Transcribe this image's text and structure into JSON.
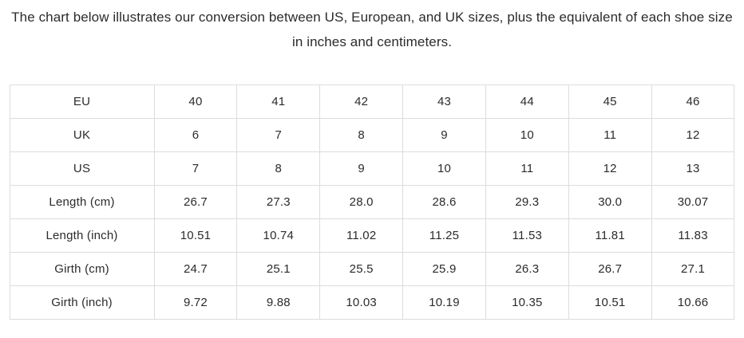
{
  "page": {
    "background": "#ffffff",
    "text_color": "#2b2b2b",
    "border_color": "#dcdcdc"
  },
  "intro": {
    "text": "The chart below illustrates our conversion between US, European, and UK sizes, plus the equivalent of each shoe size in inches and centimeters."
  },
  "size_table": {
    "rows": [
      {
        "label": "EU",
        "values": [
          "40",
          "41",
          "42",
          "43",
          "44",
          "45",
          "46"
        ]
      },
      {
        "label": "UK",
        "values": [
          "6",
          "7",
          "8",
          "9",
          "10",
          "11",
          "12"
        ]
      },
      {
        "label": "US",
        "values": [
          "7",
          "8",
          "9",
          "10",
          "11",
          "12",
          "13"
        ]
      },
      {
        "label": "Length (cm)",
        "values": [
          "26.7",
          "27.3",
          "28.0",
          "28.6",
          "29.3",
          "30.0",
          "30.07"
        ]
      },
      {
        "label": "Length (inch)",
        "values": [
          "10.51",
          "10.74",
          "11.02",
          "11.25",
          "11.53",
          "11.81",
          "11.83"
        ]
      },
      {
        "label": "Girth (cm)",
        "values": [
          "24.7",
          "25.1",
          "25.5",
          "25.9",
          "26.3",
          "26.7",
          "27.1"
        ]
      },
      {
        "label": "Girth (inch)",
        "values": [
          "9.72",
          "9.88",
          "10.03",
          "10.19",
          "10.35",
          "10.51",
          "10.66"
        ]
      }
    ]
  }
}
